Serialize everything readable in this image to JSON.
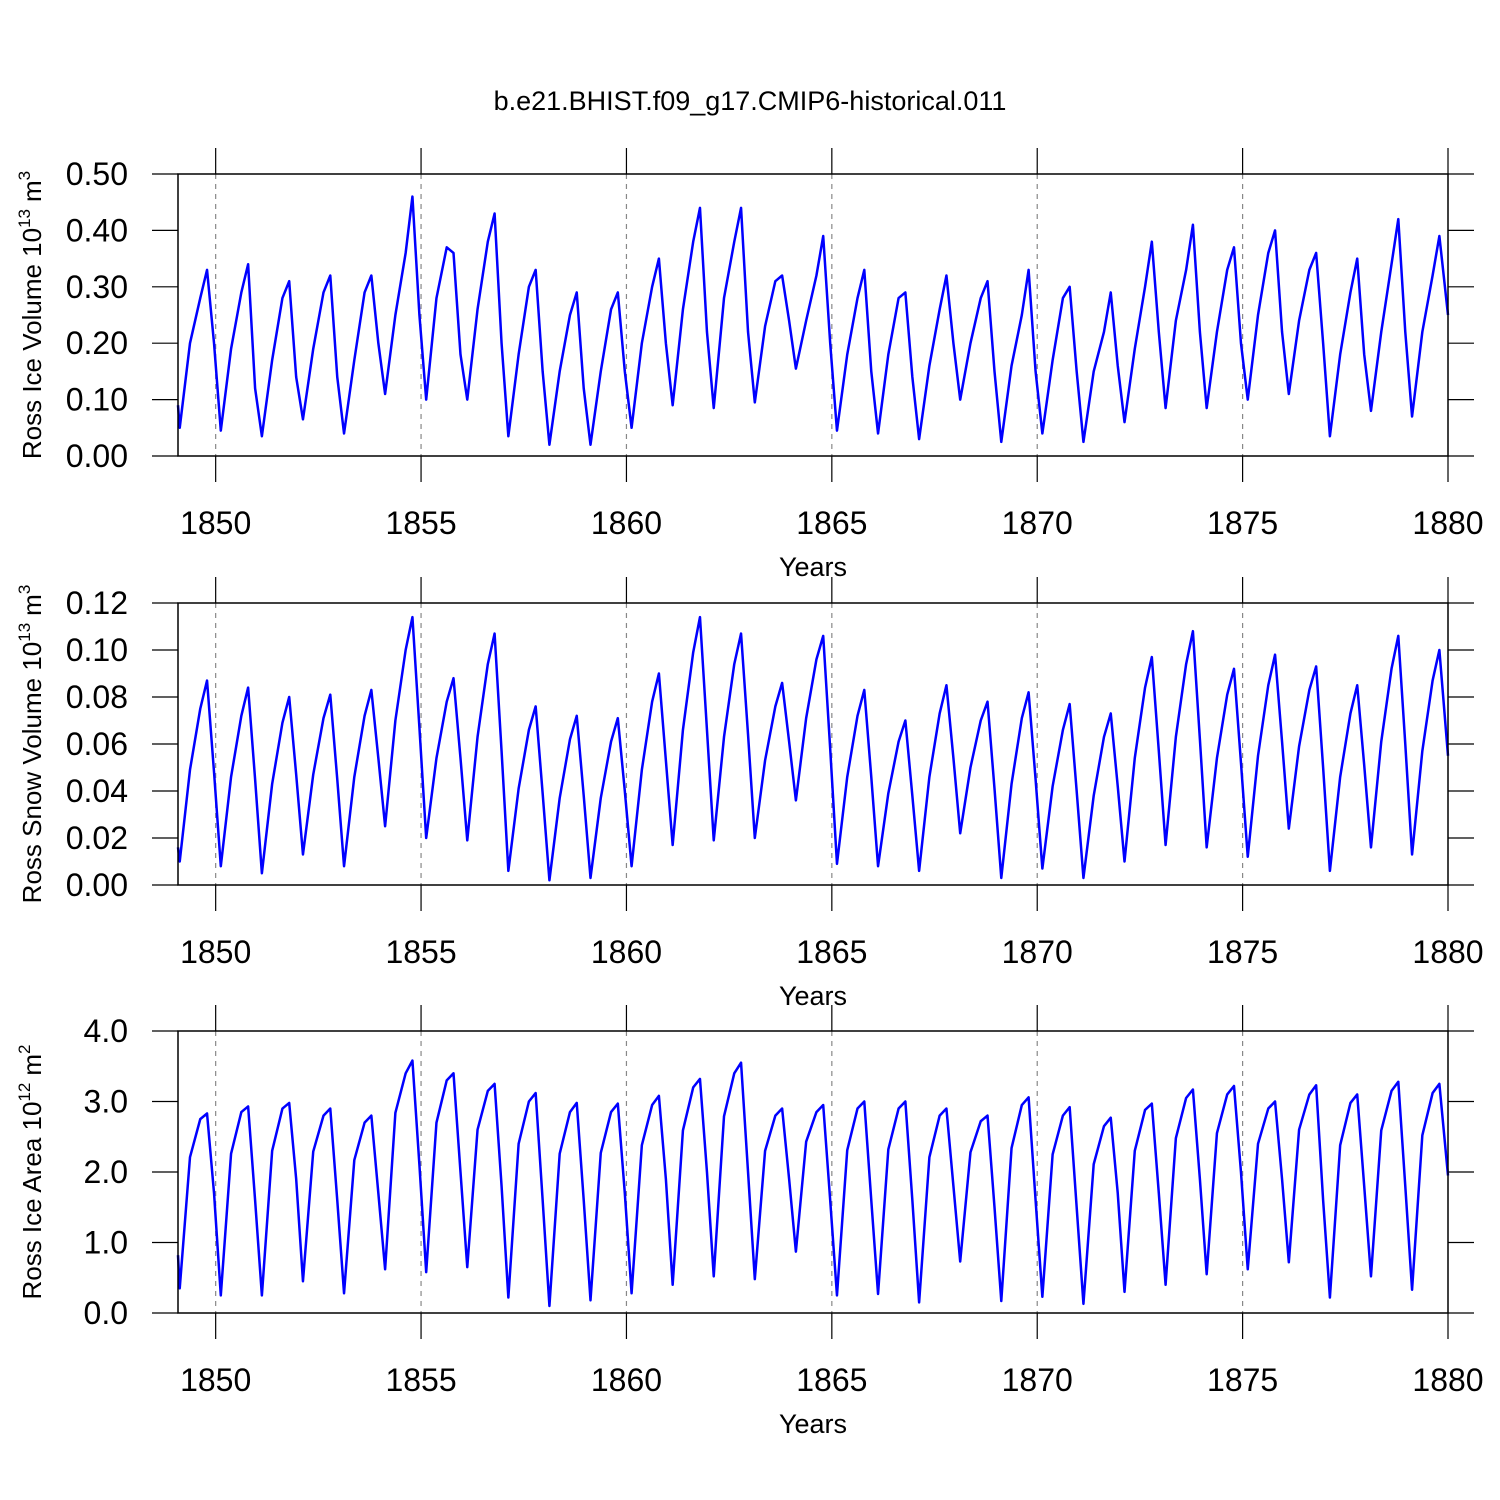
{
  "title": "b.e21.BHIST.f09_g17.CMIP6-historical.011",
  "chart_data": [
    {
      "type": "line",
      "x_label": "Years",
      "y_label": {
        "text": "Ross Ice Volume 10",
        "exponent": "13",
        "unit": "m",
        "unit_exponent": "3"
      },
      "xlim": [
        1849.083,
        1880.0
      ],
      "xticks": [
        1850,
        1855,
        1860,
        1865,
        1870,
        1875,
        1880
      ],
      "grid": true,
      "ylim": [
        0,
        0.5
      ],
      "yticks": [
        {
          "value": 0,
          "label": "0.00"
        },
        {
          "value": 0.1,
          "label": "0.10"
        },
        {
          "value": 0.2,
          "label": "0.20"
        },
        {
          "value": 0.3,
          "label": "0.30"
        },
        {
          "value": 0.4,
          "label": "0.40"
        },
        {
          "value": 0.5,
          "label": "0.50"
        }
      ],
      "x": [
        1849.083,
        1849.125,
        1849.375,
        1849.625,
        1849.79,
        1849.96,
        1850.125,
        1850.375,
        1850.625,
        1850.79,
        1850.96,
        1851.125,
        1851.375,
        1851.625,
        1851.79,
        1851.96,
        1852.125,
        1852.375,
        1852.625,
        1852.79,
        1852.96,
        1853.125,
        1853.375,
        1853.625,
        1853.79,
        1853.96,
        1854.125,
        1854.375,
        1854.625,
        1854.79,
        1854.96,
        1855.125,
        1855.375,
        1855.625,
        1855.79,
        1855.96,
        1856.125,
        1856.375,
        1856.625,
        1856.79,
        1856.96,
        1857.125,
        1857.375,
        1857.625,
        1857.79,
        1857.96,
        1858.125,
        1858.375,
        1858.625,
        1858.79,
        1858.96,
        1859.125,
        1859.375,
        1859.625,
        1859.79,
        1859.96,
        1860.125,
        1860.375,
        1860.625,
        1860.79,
        1860.96,
        1861.125,
        1861.375,
        1861.625,
        1861.79,
        1861.96,
        1862.125,
        1862.375,
        1862.625,
        1862.79,
        1862.96,
        1863.125,
        1863.375,
        1863.625,
        1863.79,
        1863.96,
        1864.125,
        1864.375,
        1864.625,
        1864.79,
        1864.96,
        1865.125,
        1865.375,
        1865.625,
        1865.79,
        1865.96,
        1866.125,
        1866.375,
        1866.625,
        1866.79,
        1866.96,
        1867.125,
        1867.375,
        1867.625,
        1867.79,
        1867.96,
        1868.125,
        1868.375,
        1868.625,
        1868.79,
        1868.96,
        1869.125,
        1869.375,
        1869.625,
        1869.79,
        1869.96,
        1870.125,
        1870.375,
        1870.625,
        1870.79,
        1870.96,
        1871.125,
        1871.375,
        1871.625,
        1871.79,
        1871.96,
        1872.125,
        1872.375,
        1872.625,
        1872.79,
        1872.96,
        1873.125,
        1873.375,
        1873.625,
        1873.79,
        1873.96,
        1874.125,
        1874.375,
        1874.625,
        1874.79,
        1874.96,
        1875.125,
        1875.375,
        1875.625,
        1875.79,
        1875.96,
        1876.125,
        1876.375,
        1876.625,
        1876.79,
        1876.96,
        1877.125,
        1877.375,
        1877.625,
        1877.79,
        1877.96,
        1878.125,
        1878.375,
        1878.625,
        1878.79,
        1878.96,
        1879.125,
        1879.375,
        1879.625,
        1879.79,
        1880.0
      ],
      "series": [
        {
          "color": "#0000ff",
          "values": [
            0.09,
            0.05,
            0.2,
            0.28,
            0.33,
            0.2,
            0.045,
            0.19,
            0.29,
            0.34,
            0.12,
            0.035,
            0.17,
            0.28,
            0.31,
            0.14,
            0.065,
            0.19,
            0.29,
            0.32,
            0.14,
            0.04,
            0.17,
            0.29,
            0.32,
            0.2,
            0.11,
            0.25,
            0.36,
            0.46,
            0.25,
            0.1,
            0.28,
            0.37,
            0.36,
            0.18,
            0.1,
            0.26,
            0.38,
            0.43,
            0.2,
            0.035,
            0.18,
            0.3,
            0.33,
            0.15,
            0.02,
            0.15,
            0.25,
            0.29,
            0.12,
            0.02,
            0.15,
            0.26,
            0.29,
            0.15,
            0.05,
            0.2,
            0.3,
            0.35,
            0.2,
            0.09,
            0.26,
            0.38,
            0.44,
            0.22,
            0.085,
            0.28,
            0.38,
            0.44,
            0.22,
            0.095,
            0.23,
            0.31,
            0.32,
            0.24,
            0.155,
            0.24,
            0.32,
            0.39,
            0.2,
            0.045,
            0.18,
            0.28,
            0.33,
            0.15,
            0.04,
            0.18,
            0.28,
            0.29,
            0.14,
            0.03,
            0.16,
            0.26,
            0.32,
            0.2,
            0.1,
            0.2,
            0.28,
            0.31,
            0.15,
            0.025,
            0.16,
            0.25,
            0.33,
            0.15,
            0.04,
            0.17,
            0.28,
            0.3,
            0.15,
            0.025,
            0.15,
            0.22,
            0.29,
            0.16,
            0.06,
            0.19,
            0.3,
            0.38,
            0.22,
            0.085,
            0.24,
            0.33,
            0.41,
            0.22,
            0.085,
            0.22,
            0.33,
            0.37,
            0.2,
            0.1,
            0.25,
            0.36,
            0.4,
            0.22,
            0.11,
            0.24,
            0.33,
            0.36,
            0.2,
            0.035,
            0.18,
            0.29,
            0.35,
            0.18,
            0.08,
            0.22,
            0.34,
            0.42,
            0.22,
            0.07,
            0.22,
            0.32,
            0.39,
            0.25
          ]
        }
      ]
    },
    {
      "type": "line",
      "x_label": "Years",
      "y_label": {
        "text": "Ross Snow Volume 10",
        "exponent": "13",
        "unit": "m",
        "unit_exponent": "3"
      },
      "xlim": [
        1849.083,
        1880.0
      ],
      "xticks": [
        1850,
        1855,
        1860,
        1865,
        1870,
        1875,
        1880
      ],
      "grid": true,
      "ylim": [
        0,
        0.12
      ],
      "yticks": [
        {
          "value": 0,
          "label": "0.00"
        },
        {
          "value": 0.02,
          "label": "0.02"
        },
        {
          "value": 0.04,
          "label": "0.04"
        },
        {
          "value": 0.06,
          "label": "0.06"
        },
        {
          "value": 0.08,
          "label": "0.08"
        },
        {
          "value": 0.1,
          "label": "0.10"
        },
        {
          "value": 0.12,
          "label": "0.12"
        }
      ],
      "x": [
        1849.083,
        1849.125,
        1849.375,
        1849.625,
        1849.79,
        1849.96,
        1850.125,
        1850.375,
        1850.625,
        1850.79,
        1850.96,
        1851.125,
        1851.375,
        1851.625,
        1851.79,
        1851.96,
        1852.125,
        1852.375,
        1852.625,
        1852.79,
        1852.96,
        1853.125,
        1853.375,
        1853.625,
        1853.79,
        1853.96,
        1854.125,
        1854.375,
        1854.625,
        1854.79,
        1854.96,
        1855.125,
        1855.375,
        1855.625,
        1855.79,
        1855.96,
        1856.125,
        1856.375,
        1856.625,
        1856.79,
        1856.96,
        1857.125,
        1857.375,
        1857.625,
        1857.79,
        1857.96,
        1858.125,
        1858.375,
        1858.625,
        1858.79,
        1858.96,
        1859.125,
        1859.375,
        1859.625,
        1859.79,
        1859.96,
        1860.125,
        1860.375,
        1860.625,
        1860.79,
        1860.96,
        1861.125,
        1861.375,
        1861.625,
        1861.79,
        1861.96,
        1862.125,
        1862.375,
        1862.625,
        1862.79,
        1862.96,
        1863.125,
        1863.375,
        1863.625,
        1863.79,
        1863.96,
        1864.125,
        1864.375,
        1864.625,
        1864.79,
        1864.96,
        1865.125,
        1865.375,
        1865.625,
        1865.79,
        1865.96,
        1866.125,
        1866.375,
        1866.625,
        1866.79,
        1866.96,
        1867.125,
        1867.375,
        1867.625,
        1867.79,
        1867.96,
        1868.125,
        1868.375,
        1868.625,
        1868.79,
        1868.96,
        1869.125,
        1869.375,
        1869.625,
        1869.79,
        1869.96,
        1870.125,
        1870.375,
        1870.625,
        1870.79,
        1870.96,
        1871.125,
        1871.375,
        1871.625,
        1871.79,
        1871.96,
        1872.125,
        1872.375,
        1872.625,
        1872.79,
        1872.96,
        1873.125,
        1873.375,
        1873.625,
        1873.79,
        1873.96,
        1874.125,
        1874.375,
        1874.625,
        1874.79,
        1874.96,
        1875.125,
        1875.375,
        1875.625,
        1875.79,
        1875.96,
        1876.125,
        1876.375,
        1876.625,
        1876.79,
        1876.96,
        1877.125,
        1877.375,
        1877.625,
        1877.79,
        1877.96,
        1878.125,
        1878.375,
        1878.625,
        1878.79,
        1878.96,
        1879.125,
        1879.375,
        1879.625,
        1879.79,
        1880.0
      ],
      "series": [
        {
          "color": "#0000ff",
          "values": [
            0.016,
            0.01,
            0.049,
            0.075,
            0.087,
            0.048,
            0.008,
            0.046,
            0.072,
            0.084,
            0.045,
            0.005,
            0.043,
            0.069,
            0.08,
            0.047,
            0.013,
            0.047,
            0.071,
            0.081,
            0.045,
            0.008,
            0.046,
            0.072,
            0.083,
            0.054,
            0.025,
            0.07,
            0.1,
            0.114,
            0.067,
            0.02,
            0.054,
            0.078,
            0.088,
            0.054,
            0.019,
            0.063,
            0.094,
            0.107,
            0.057,
            0.006,
            0.041,
            0.066,
            0.076,
            0.039,
            0.002,
            0.037,
            0.062,
            0.072,
            0.038,
            0.003,
            0.037,
            0.061,
            0.071,
            0.04,
            0.008,
            0.049,
            0.078,
            0.09,
            0.053,
            0.017,
            0.066,
            0.099,
            0.114,
            0.066,
            0.019,
            0.063,
            0.094,
            0.107,
            0.064,
            0.02,
            0.053,
            0.076,
            0.086,
            0.061,
            0.036,
            0.071,
            0.096,
            0.106,
            0.058,
            0.009,
            0.046,
            0.072,
            0.083,
            0.046,
            0.008,
            0.039,
            0.061,
            0.07,
            0.038,
            0.006,
            0.046,
            0.073,
            0.085,
            0.054,
            0.022,
            0.05,
            0.07,
            0.078,
            0.041,
            0.003,
            0.043,
            0.071,
            0.082,
            0.045,
            0.007,
            0.042,
            0.066,
            0.077,
            0.04,
            0.003,
            0.038,
            0.063,
            0.073,
            0.042,
            0.01,
            0.054,
            0.084,
            0.097,
            0.057,
            0.017,
            0.063,
            0.094,
            0.108,
            0.062,
            0.016,
            0.054,
            0.081,
            0.092,
            0.052,
            0.012,
            0.055,
            0.085,
            0.098,
            0.061,
            0.024,
            0.059,
            0.083,
            0.093,
            0.05,
            0.006,
            0.046,
            0.073,
            0.085,
            0.051,
            0.016,
            0.061,
            0.092,
            0.106,
            0.06,
            0.013,
            0.057,
            0.087,
            0.1,
            0.055
          ]
        }
      ]
    },
    {
      "type": "line",
      "x_label": "Years",
      "y_label": {
        "text": "Ross Ice Area 10",
        "exponent": "12",
        "unit": "m",
        "unit_exponent": "2"
      },
      "xlim": [
        1849.083,
        1880.0
      ],
      "xticks": [
        1850,
        1855,
        1860,
        1865,
        1870,
        1875,
        1880
      ],
      "grid": true,
      "ylim": [
        0,
        4
      ],
      "yticks": [
        {
          "value": 0,
          "label": "0.0"
        },
        {
          "value": 1,
          "label": "1.0"
        },
        {
          "value": 2,
          "label": "2.0"
        },
        {
          "value": 3,
          "label": "3.0"
        },
        {
          "value": 4,
          "label": "4.0"
        }
      ],
      "x": [
        1849.083,
        1849.125,
        1849.375,
        1849.625,
        1849.79,
        1849.96,
        1850.125,
        1850.375,
        1850.625,
        1850.79,
        1850.96,
        1851.125,
        1851.375,
        1851.625,
        1851.79,
        1851.96,
        1852.125,
        1852.375,
        1852.625,
        1852.79,
        1852.96,
        1853.125,
        1853.375,
        1853.625,
        1853.79,
        1853.96,
        1854.125,
        1854.375,
        1854.625,
        1854.79,
        1854.96,
        1855.125,
        1855.375,
        1855.625,
        1855.79,
        1855.96,
        1856.125,
        1856.375,
        1856.625,
        1856.79,
        1856.96,
        1857.125,
        1857.375,
        1857.625,
        1857.79,
        1857.96,
        1858.125,
        1858.375,
        1858.625,
        1858.79,
        1858.96,
        1859.125,
        1859.375,
        1859.625,
        1859.79,
        1859.96,
        1860.125,
        1860.375,
        1860.625,
        1860.79,
        1860.96,
        1861.125,
        1861.375,
        1861.625,
        1861.79,
        1861.96,
        1862.125,
        1862.375,
        1862.625,
        1862.79,
        1862.96,
        1863.125,
        1863.375,
        1863.625,
        1863.79,
        1863.96,
        1864.125,
        1864.375,
        1864.625,
        1864.79,
        1864.96,
        1865.125,
        1865.375,
        1865.625,
        1865.79,
        1865.96,
        1866.125,
        1866.375,
        1866.625,
        1866.79,
        1866.96,
        1867.125,
        1867.375,
        1867.625,
        1867.79,
        1867.96,
        1868.125,
        1868.375,
        1868.625,
        1868.79,
        1868.96,
        1869.125,
        1869.375,
        1869.625,
        1869.79,
        1869.96,
        1870.125,
        1870.375,
        1870.625,
        1870.79,
        1870.96,
        1871.125,
        1871.375,
        1871.625,
        1871.79,
        1871.96,
        1872.125,
        1872.375,
        1872.625,
        1872.79,
        1872.96,
        1873.125,
        1873.375,
        1873.625,
        1873.79,
        1873.96,
        1874.125,
        1874.375,
        1874.625,
        1874.79,
        1874.96,
        1875.125,
        1875.375,
        1875.625,
        1875.79,
        1875.96,
        1876.125,
        1876.375,
        1876.625,
        1876.79,
        1876.96,
        1877.125,
        1877.375,
        1877.625,
        1877.79,
        1877.96,
        1878.125,
        1878.375,
        1878.625,
        1878.79,
        1878.96,
        1879.125,
        1879.375,
        1879.625,
        1879.79,
        1880.0
      ],
      "series": [
        {
          "color": "#0000ff",
          "values": [
            0.82,
            0.35,
            2.21,
            2.75,
            2.83,
            1.7,
            0.25,
            2.26,
            2.85,
            2.93,
            1.6,
            0.25,
            2.3,
            2.9,
            2.98,
            1.9,
            0.45,
            2.29,
            2.8,
            2.9,
            1.6,
            0.28,
            2.17,
            2.7,
            2.8,
            1.7,
            0.62,
            2.84,
            3.4,
            3.58,
            2.1,
            0.58,
            2.7,
            3.3,
            3.4,
            2.0,
            0.65,
            2.6,
            3.15,
            3.25,
            1.8,
            0.22,
            2.4,
            3.0,
            3.12,
            1.6,
            0.1,
            2.26,
            2.85,
            2.98,
            1.6,
            0.18,
            2.27,
            2.85,
            2.97,
            1.7,
            0.28,
            2.38,
            2.95,
            3.08,
            1.9,
            0.4,
            2.59,
            3.2,
            3.32,
            2.0,
            0.52,
            2.79,
            3.4,
            3.55,
            2.0,
            0.48,
            2.3,
            2.8,
            2.9,
            1.9,
            0.87,
            2.43,
            2.85,
            2.95,
            1.6,
            0.25,
            2.31,
            2.9,
            3.0,
            1.6,
            0.27,
            2.32,
            2.9,
            3.0,
            1.6,
            0.15,
            2.21,
            2.8,
            2.9,
            1.8,
            0.73,
            2.28,
            2.72,
            2.8,
            1.5,
            0.17,
            2.34,
            2.95,
            3.06,
            1.6,
            0.23,
            2.25,
            2.8,
            2.92,
            1.5,
            0.13,
            2.11,
            2.65,
            2.77,
            1.7,
            0.3,
            2.3,
            2.88,
            2.97,
            1.7,
            0.4,
            2.48,
            3.05,
            3.17,
            1.9,
            0.55,
            2.55,
            3.1,
            3.22,
            2.0,
            0.62,
            2.4,
            2.9,
            3.0,
            1.9,
            0.72,
            2.6,
            3.1,
            3.23,
            1.6,
            0.22,
            2.38,
            2.98,
            3.1,
            1.8,
            0.52,
            2.59,
            3.15,
            3.28,
            1.8,
            0.33,
            2.52,
            3.12,
            3.25,
            1.95
          ]
        }
      ]
    }
  ]
}
